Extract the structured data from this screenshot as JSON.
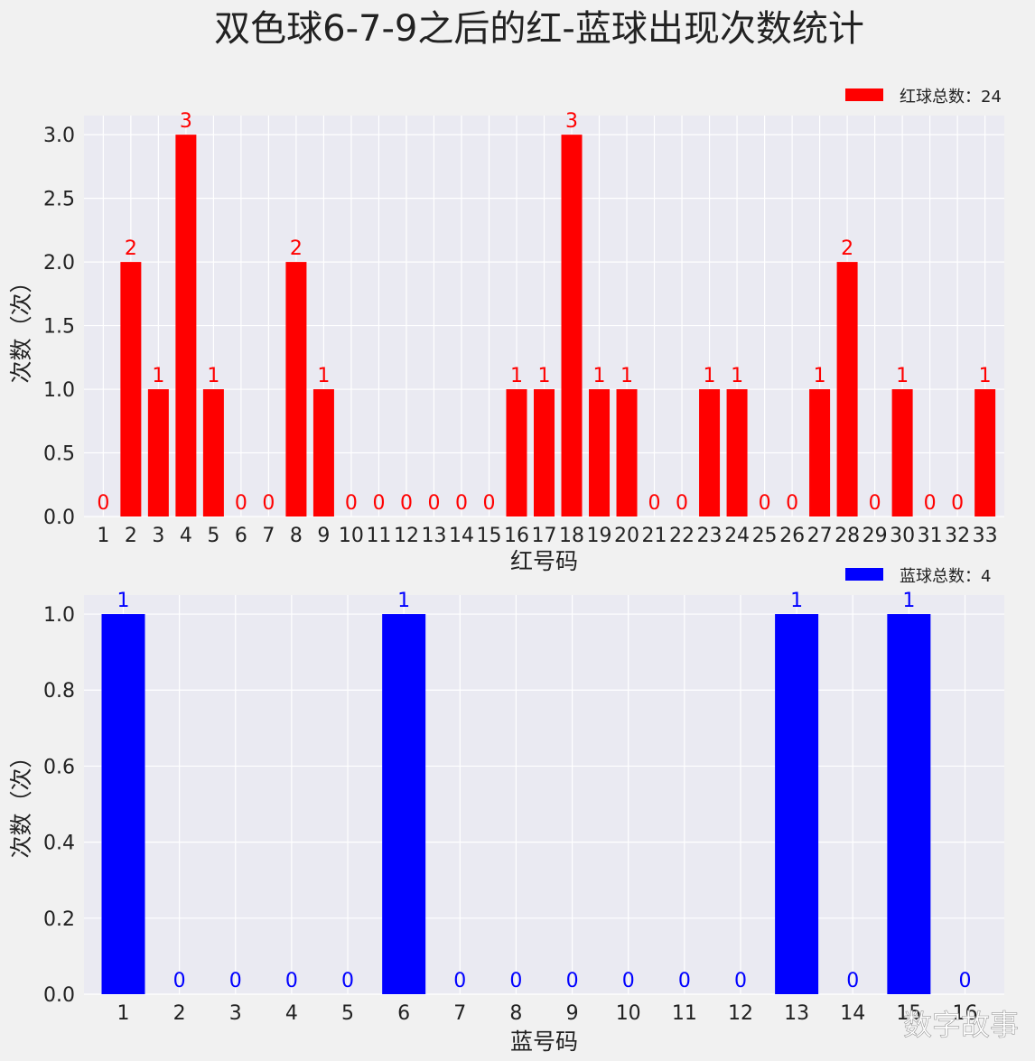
{
  "title": "双色球6-7-9之后的红-蓝球出现次数统计",
  "watermark": "数字故事",
  "colors": {
    "red": "#ff0000",
    "blue": "#0000ff",
    "plot_bg": "#eaeaf2",
    "figure_bg": "#f1f1f1"
  },
  "chart_data": [
    {
      "type": "bar",
      "title": "",
      "xlabel": "红号码",
      "ylabel": "次数（次）",
      "categories": [
        "1",
        "2",
        "3",
        "4",
        "5",
        "6",
        "7",
        "8",
        "9",
        "10",
        "11",
        "12",
        "13",
        "14",
        "15",
        "16",
        "17",
        "18",
        "19",
        "20",
        "21",
        "22",
        "23",
        "24",
        "25",
        "26",
        "27",
        "28",
        "29",
        "30",
        "31",
        "32",
        "33"
      ],
      "series": [
        {
          "name": "红球总数：24",
          "color": "#ff0000",
          "values": [
            0,
            2,
            1,
            3,
            1,
            0,
            0,
            2,
            1,
            0,
            0,
            0,
            0,
            0,
            0,
            1,
            1,
            3,
            1,
            1,
            0,
            0,
            1,
            1,
            0,
            0,
            1,
            2,
            0,
            1,
            0,
            0,
            1
          ]
        }
      ],
      "ylim": [
        0,
        3.15
      ],
      "yticks": [
        "0.0",
        "0.5",
        "1.0",
        "1.5",
        "2.0",
        "2.5",
        "3.0"
      ],
      "grid": true,
      "legend": "top-right"
    },
    {
      "type": "bar",
      "title": "",
      "xlabel": "蓝号码",
      "ylabel": "次数（次）",
      "categories": [
        "1",
        "2",
        "3",
        "4",
        "5",
        "6",
        "7",
        "8",
        "9",
        "10",
        "11",
        "12",
        "13",
        "14",
        "15",
        "16"
      ],
      "series": [
        {
          "name": "蓝球总数：4",
          "color": "#0000ff",
          "values": [
            1,
            0,
            0,
            0,
            0,
            1,
            0,
            0,
            0,
            0,
            0,
            0,
            1,
            0,
            1,
            0
          ]
        }
      ],
      "ylim": [
        0,
        1.05
      ],
      "yticks": [
        "0.0",
        "0.2",
        "0.4",
        "0.6",
        "0.8",
        "1.0"
      ],
      "grid": true,
      "legend": "top-right"
    }
  ]
}
